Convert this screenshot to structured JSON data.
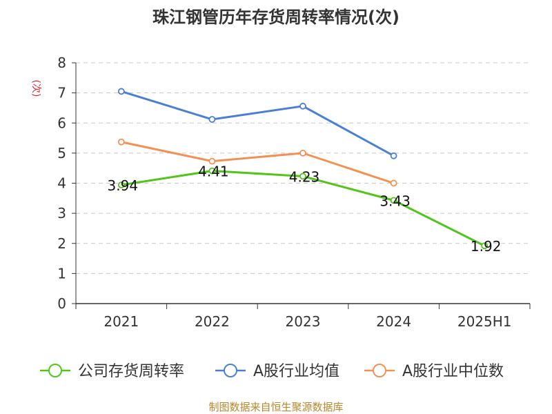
{
  "chart_data": {
    "type": "line",
    "title": "珠江钢管历年存货周转率情况(次)",
    "ylabel": "(次)",
    "categories": [
      "2021",
      "2022",
      "2023",
      "2024",
      "2025H1"
    ],
    "ylim": [
      0,
      8
    ],
    "yticks": [
      0,
      1,
      2,
      3,
      4,
      5,
      6,
      7,
      8
    ],
    "grid": true,
    "legend_position": "bottom",
    "series": [
      {
        "name": "公司存货周转率",
        "color": "#52c41a",
        "values": [
          3.94,
          4.41,
          4.23,
          3.43,
          1.92
        ],
        "labels": [
          "3.94",
          "4.41",
          "4.23",
          "3.43",
          "1.92"
        ]
      },
      {
        "name": "A股行业均值",
        "color": "#4a7fd6",
        "values": [
          7.05,
          6.12,
          6.56,
          4.91,
          null
        ]
      },
      {
        "name": "A股行业中位数",
        "color": "#f39152",
        "values": [
          5.37,
          4.73,
          5.0,
          4.0,
          null
        ]
      }
    ]
  },
  "source": "制图数据来自恒生聚源数据库"
}
